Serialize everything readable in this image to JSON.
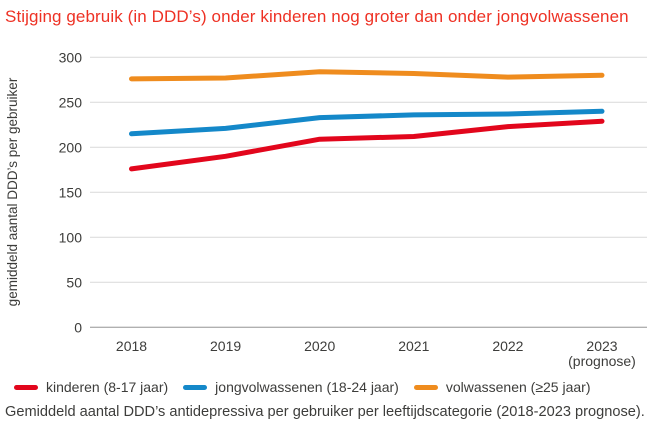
{
  "title": "Stijging gebruik (in DDD’s) onder kinderen nog groter dan onder jongvolwassenen",
  "caption": "Gemiddeld aantal DDD’s antidepressiva per gebruiker per leeftijdscategorie (2018-2023 prognose).",
  "colors": {
    "title": "#ee3124",
    "text": "#3d3d3b",
    "grid": "#dedede",
    "zero_line": "#b0b0b0",
    "kinderen": "#e2061c",
    "jongvolwassenen": "#1488c9",
    "volwassenen": "#ef8c1e"
  },
  "chart_data": {
    "type": "line",
    "title": "Stijging gebruik (in DDD’s) onder kinderen nog groter dan onder jongvolwassenen",
    "ylabel": "gemiddeld aantal DDD’s per gebruiker",
    "xlabel": "",
    "categories": [
      "2018",
      "2019",
      "2020",
      "2021",
      "2022",
      "2023\n(prognose)"
    ],
    "yticks": [
      0,
      50,
      100,
      150,
      200,
      250,
      300
    ],
    "ylim": [
      0,
      300
    ],
    "grid": true,
    "legend_position": "bottom",
    "series": [
      {
        "name": "kinderen (8-17 jaar)",
        "color": "#e2061c",
        "values": [
          176,
          190,
          209,
          212,
          223,
          229
        ]
      },
      {
        "name": "jongvolwassenen (18-24 jaar)",
        "color": "#1488c9",
        "values": [
          215,
          221,
          233,
          236,
          237,
          240
        ]
      },
      {
        "name": "volwassenen (≥25 jaar)",
        "color": "#ef8c1e",
        "values": [
          276,
          277,
          284,
          282,
          278,
          280
        ]
      }
    ]
  }
}
